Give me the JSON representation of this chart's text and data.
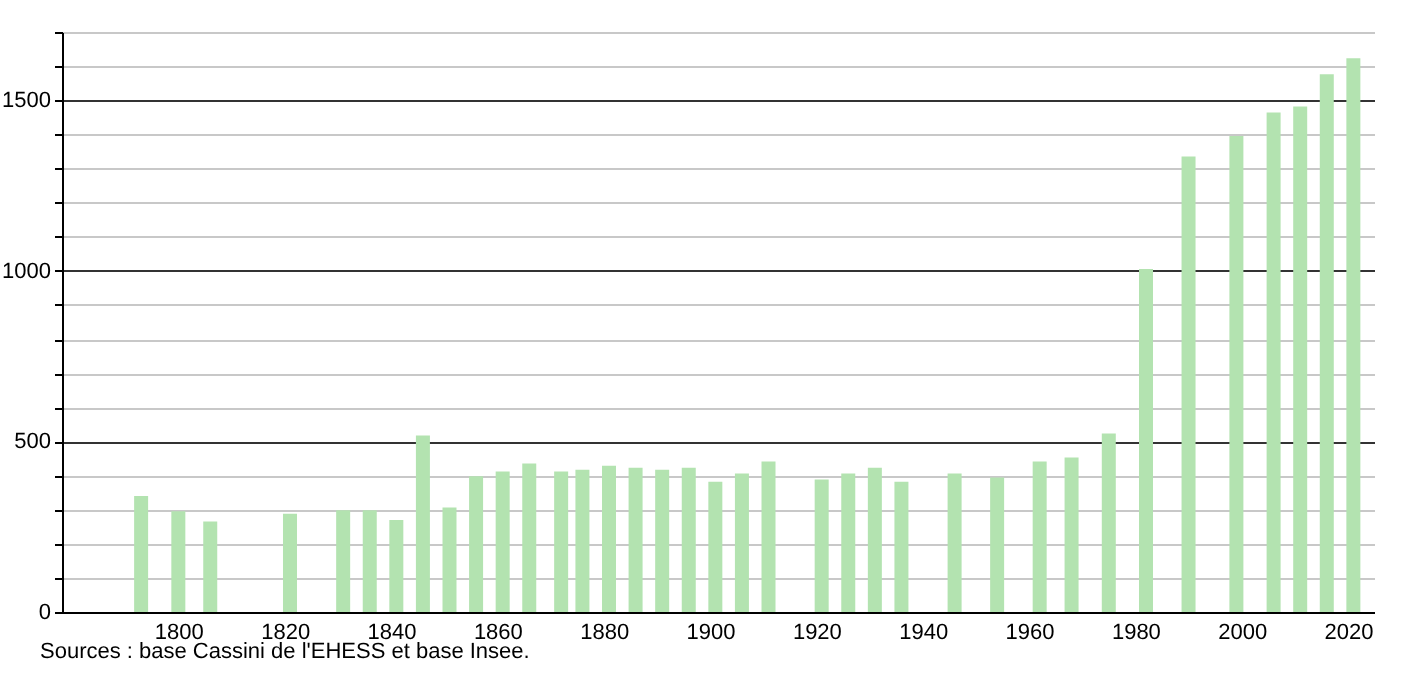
{
  "chart_data": {
    "type": "bar",
    "x": [
      1793,
      1800,
      1806,
      1821,
      1831,
      1836,
      1841,
      1846,
      1851,
      1856,
      1861,
      1866,
      1872,
      1876,
      1881,
      1886,
      1891,
      1896,
      1901,
      1906,
      1911,
      1921,
      1926,
      1931,
      1936,
      1946,
      1954,
      1962,
      1968,
      1975,
      1982,
      1990,
      1999,
      2006,
      2011,
      2016,
      2021
    ],
    "values": [
      340,
      295,
      265,
      288,
      298,
      298,
      270,
      517,
      306,
      398,
      412,
      435,
      412,
      417,
      429,
      423,
      417,
      423,
      382,
      406,
      441,
      388,
      406,
      423,
      382,
      406,
      394,
      441,
      453,
      523,
      1005,
      1335,
      1395,
      1464,
      1482,
      1576,
      1623
    ],
    "color": "#b3e3b0",
    "xlim": [
      1780,
      2023
    ],
    "xticks": [
      1800,
      1820,
      1840,
      1860,
      1880,
      1900,
      1920,
      1940,
      1960,
      1980,
      2000,
      2020
    ],
    "ylim": [
      0,
      1700
    ],
    "yticks": [
      0,
      {
        "value": 100,
        "label": null
      },
      {
        "value": 200,
        "label": null
      },
      {
        "value": 300,
        "label": null
      },
      {
        "value": 400,
        "label": null
      },
      500,
      {
        "value": 600,
        "label": null
      },
      {
        "value": 700,
        "label": null
      },
      {
        "value": 800,
        "label": null
      },
      {
        "value": 900,
        "label": null
      },
      1000,
      {
        "value": 1100,
        "label": null
      },
      {
        "value": 1200,
        "label": null
      },
      {
        "value": 1300,
        "label": null
      },
      {
        "value": 1400,
        "label": null
      },
      1500,
      {
        "value": 1600,
        "label": null
      },
      {
        "value": 1700,
        "label": null
      }
    ],
    "grid": "y",
    "annotations": [
      "Sources : base Cassini de l'EHESS et base Insee."
    ]
  }
}
